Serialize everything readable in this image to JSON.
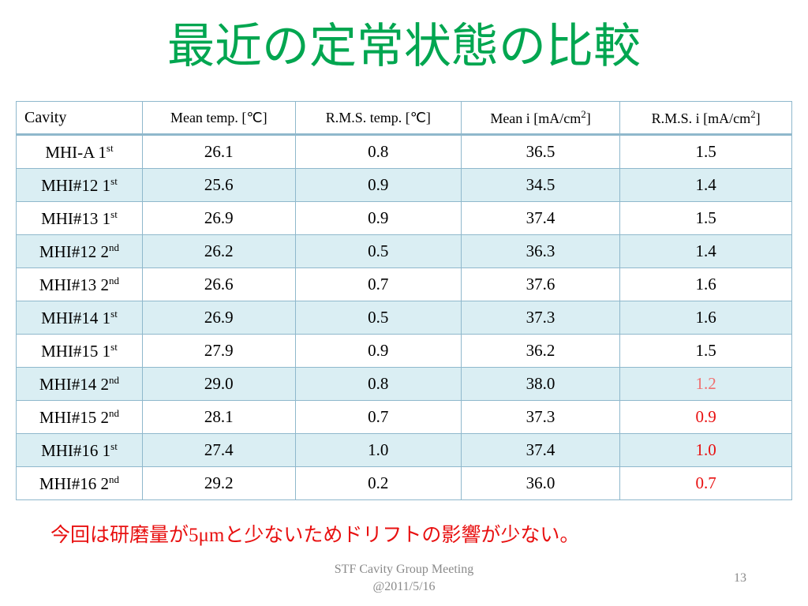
{
  "header": {
    "title": "最近の定常状態の比較"
  },
  "table": {
    "columns": [
      {
        "text": "Cavity"
      },
      {
        "text": "Mean temp. [℃]"
      },
      {
        "text": "R.M.S. temp. [℃]"
      },
      {
        "text": "Mean i [mA/cm",
        "sup": "2",
        "tail": "]"
      },
      {
        "text": "R.M.S. i [mA/cm",
        "sup": "2",
        "tail": "]"
      }
    ],
    "rows": [
      {
        "cavity": {
          "text": "MHI-A 1",
          "sup": "st"
        },
        "cells": [
          "26.1",
          "0.8",
          "36.5",
          "1.5"
        ]
      },
      {
        "cavity": {
          "text": "MHI#12 1",
          "sup": "st"
        },
        "cells": [
          "25.6",
          "0.9",
          "34.5",
          "1.4"
        ]
      },
      {
        "cavity": {
          "text": "MHI#13 1",
          "sup": "st"
        },
        "cells": [
          "26.9",
          "0.9",
          "37.4",
          "1.5"
        ]
      },
      {
        "cavity": {
          "text": "MHI#12 2",
          "sup": "nd"
        },
        "cells": [
          "26.2",
          "0.5",
          "36.3",
          "1.4"
        ]
      },
      {
        "cavity": {
          "text": "MHI#13 2",
          "sup": "nd"
        },
        "cells": [
          "26.6",
          "0.7",
          "37.6",
          "1.6"
        ]
      },
      {
        "cavity": {
          "text": "MHI#14 1",
          "sup": "st"
        },
        "cells": [
          "26.9",
          "0.5",
          "37.3",
          "1.6"
        ]
      },
      {
        "cavity": {
          "text": "MHI#15 1",
          "sup": "st"
        },
        "cells": [
          "27.9",
          "0.9",
          "36.2",
          "1.5"
        ]
      },
      {
        "cavity": {
          "text": "MHI#14 2",
          "sup": "nd"
        },
        "cells": [
          "29.0",
          "0.8",
          "38.0",
          "1.2"
        ],
        "highlight": "#f07070"
      },
      {
        "cavity": {
          "text": "MHI#15 2",
          "sup": "nd"
        },
        "cells": [
          "28.1",
          "0.7",
          "37.3",
          "0.9"
        ],
        "highlight": "#e81010"
      },
      {
        "cavity": {
          "text": "MHI#16 1",
          "sup": "st"
        },
        "cells": [
          "27.4",
          "1.0",
          "37.4",
          "1.0"
        ],
        "highlight": "#e81010"
      },
      {
        "cavity": {
          "text": "MHI#16 2",
          "sup": "nd"
        },
        "cells": [
          "29.2",
          "0.2",
          "36.0",
          "0.7"
        ],
        "highlight": "#e81010"
      }
    ]
  },
  "note": "今回は研磨量が5μmと少ないためドリフトの影響が少ない。",
  "footer": {
    "lines": [
      "STF Cavity Group Meeting",
      "@2011/5/16"
    ],
    "page": "13"
  }
}
